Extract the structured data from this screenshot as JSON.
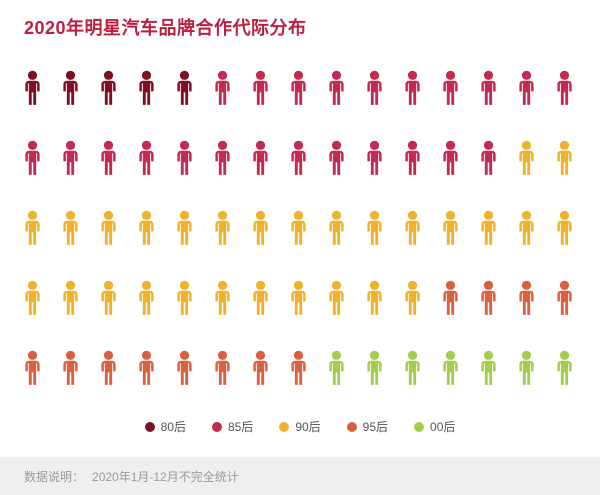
{
  "title": "2020年明星汽车品牌合作代际分布",
  "footer": {
    "label": "数据说明：",
    "text": "2020年1月-12月不完全统计"
  },
  "colors": {
    "title": "#BC1F3F",
    "footer_background": "#EFEFEF",
    "footer_text": "#999999",
    "legend_text": "#555555",
    "background": "#FFFFFF"
  },
  "chart_data": {
    "type": "pictogram",
    "title": "2020年明星汽车品牌合作代际分布",
    "unit": "person-icon",
    "columns": 15,
    "rows": 5,
    "total_icons": 75,
    "fill_order": "left-to-right, top-to-bottom",
    "legend_position": "bottom",
    "series": [
      {
        "name": "80后",
        "count": 5,
        "color": "#7D1022"
      },
      {
        "name": "85后",
        "count": 23,
        "color": "#C22A52"
      },
      {
        "name": "90后",
        "count": 28,
        "color": "#EFB32B"
      },
      {
        "name": "95后",
        "count": 12,
        "color": "#DA6140"
      },
      {
        "name": "00后",
        "count": 7,
        "color": "#A4CC4F"
      }
    ]
  }
}
